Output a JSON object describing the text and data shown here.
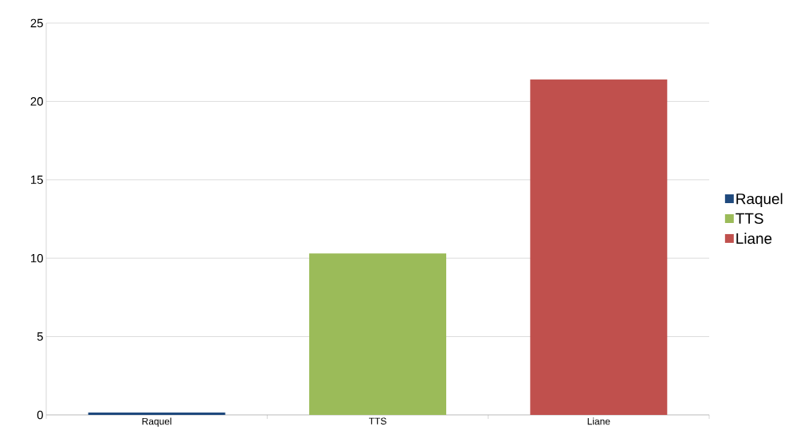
{
  "chart_data": {
    "type": "bar",
    "categories": [
      "Raquel",
      "TTS",
      "Liane"
    ],
    "series": [
      {
        "name": "Raquel",
        "color": "#1f497d",
        "values": [
          0.15,
          null,
          null
        ]
      },
      {
        "name": "TTS",
        "color": "#9bbb59",
        "values": [
          null,
          10.3,
          null
        ]
      },
      {
        "name": "Liane",
        "color": "#c0504d",
        "values": [
          null,
          null,
          21.4
        ]
      }
    ],
    "ylim": [
      0,
      25
    ],
    "yticks": [
      0,
      5,
      10,
      15,
      20,
      25
    ],
    "grid": "y",
    "legend": "right"
  }
}
